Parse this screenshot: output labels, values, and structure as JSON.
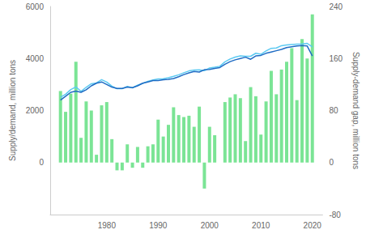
{
  "chart_data": {
    "type": "bar",
    "x": [
      1971,
      1972,
      1973,
      1974,
      1975,
      1976,
      1977,
      1978,
      1979,
      1980,
      1981,
      1982,
      1983,
      1984,
      1985,
      1986,
      1987,
      1988,
      1989,
      1990,
      1991,
      1992,
      1993,
      1994,
      1995,
      1996,
      1997,
      1998,
      1999,
      2000,
      2001,
      2002,
      2003,
      2004,
      2005,
      2006,
      2007,
      2008,
      2009,
      2010,
      2011,
      2012,
      2013,
      2014,
      2015,
      2016,
      2017,
      2018,
      2019,
      2020
    ],
    "xlim": [
      1969,
      2022
    ],
    "xticks": [
      1980,
      1990,
      2000,
      2010,
      2020
    ],
    "ylabel": "Supply/demand, million tons",
    "y2label": "Supply-demand gap, million tons",
    "ylim": [
      -2000,
      6000
    ],
    "yticks": [
      0,
      2000,
      4000,
      6000
    ],
    "y2lim": [
      -80,
      240
    ],
    "y2ticks": [
      -80,
      0,
      80,
      160,
      240
    ],
    "grid": false,
    "series": [
      {
        "type": "bar",
        "axis": "y2",
        "color": "#7be495",
        "values": [
          110,
          78,
          106,
          155,
          38,
          94,
          80,
          12,
          88,
          93,
          36,
          -12,
          -12,
          28,
          -8,
          24,
          -8,
          25,
          28,
          66,
          40,
          58,
          85,
          73,
          70,
          72,
          55,
          86,
          -40,
          55,
          42,
          0,
          93,
          100,
          105,
          99,
          33,
          116,
          102,
          43,
          94,
          141,
          105,
          143,
          155,
          176,
          96,
          190,
          160,
          228
        ]
      },
      {
        "type": "line",
        "color": "#5ccaf2",
        "values": [
          2510,
          2628,
          2806,
          2905,
          2738,
          2894,
          3030,
          3062,
          3188,
          3093,
          2936,
          2838,
          2838,
          2928,
          2872,
          2974,
          3042,
          3125,
          3178,
          3216,
          3220,
          3258,
          3315,
          3373,
          3450,
          3522,
          3555,
          3566,
          3530,
          3635,
          3662,
          3700,
          3873,
          3980,
          4055,
          4099,
          4083,
          4086,
          4202,
          4163,
          4294,
          4391,
          4405,
          4493,
          4520,
          4540,
          4550,
          4560,
          4580,
          4450
        ]
      },
      {
        "type": "line",
        "color": "#1f6cc4",
        "values": [
          2400,
          2550,
          2700,
          2750,
          2700,
          2800,
          2950,
          3050,
          3100,
          3000,
          2900,
          2850,
          2850,
          2900,
          2880,
          2950,
          3050,
          3100,
          3150,
          3150,
          3180,
          3200,
          3230,
          3300,
          3380,
          3450,
          3500,
          3480,
          3570,
          3580,
          3620,
          3650,
          3780,
          3880,
          3950,
          4000,
          4050,
          3970,
          4100,
          4120,
          4200,
          4250,
          4300,
          4350,
          4420,
          4450,
          4480,
          4500,
          4480,
          4100
        ]
      }
    ]
  }
}
